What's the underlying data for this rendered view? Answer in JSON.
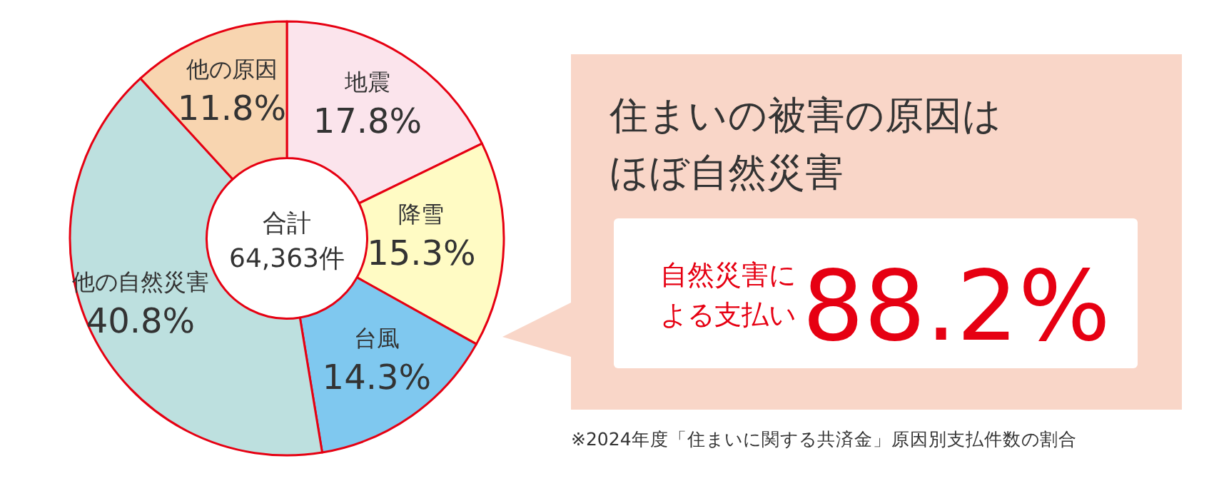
{
  "chart_data": {
    "type": "donut",
    "categories": [
      "地震",
      "降雪",
      "台風",
      "他の自然災害",
      "他の原因"
    ],
    "values": [
      17.8,
      15.3,
      14.3,
      40.8,
      11.8
    ],
    "value_labels": [
      "17.8%",
      "15.3%",
      "14.3%",
      "40.8%",
      "11.8%"
    ],
    "colors": [
      "#fbe4ec",
      "#fffbc4",
      "#7fc8ef",
      "#bde0df",
      "#f8d5b0"
    ],
    "annotations": [
      "合計",
      "64,363件",
      "住まいの被害の原因は",
      "ほぼ自然災害",
      "自然災害に",
      "よる支払い",
      "88.2%",
      "※2024年度「住まいに関する共済金」原因別支払件数の割合"
    ]
  }
}
